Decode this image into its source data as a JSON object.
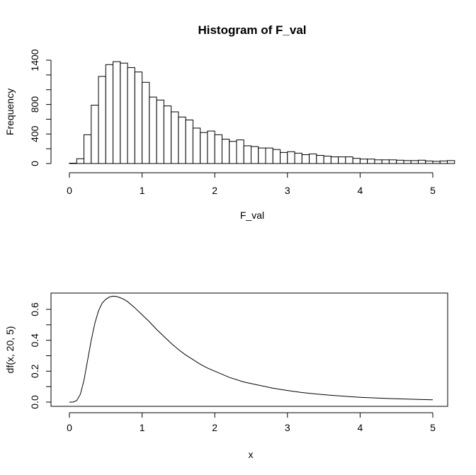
{
  "chart_data": [
    {
      "type": "bar",
      "title": "Histogram of F_val",
      "xlabel": "F_val",
      "ylabel": "Frequency",
      "bin_width": 0.1,
      "bin_start": 0.0,
      "values": [
        5,
        65,
        390,
        790,
        1180,
        1340,
        1380,
        1360,
        1300,
        1240,
        1100,
        900,
        860,
        780,
        700,
        630,
        590,
        480,
        420,
        440,
        390,
        330,
        300,
        320,
        240,
        230,
        210,
        210,
        190,
        150,
        160,
        140,
        120,
        130,
        110,
        100,
        90,
        90,
        90,
        70,
        60,
        60,
        50,
        50,
        50,
        45,
        40,
        40,
        45,
        35,
        30,
        35,
        40
      ],
      "xlim": [
        0,
        5.2
      ],
      "ylim": [
        0,
        1400
      ],
      "x_ticks": [
        "0",
        "1",
        "2",
        "3",
        "4",
        "5"
      ],
      "y_ticks": [
        "0",
        "400",
        "800",
        "1400"
      ]
    },
    {
      "type": "line",
      "title": "",
      "xlabel": "x",
      "ylabel": "df(x, 20, 5)",
      "x": [
        0,
        0.05,
        0.1,
        0.15,
        0.2,
        0.25,
        0.3,
        0.35,
        0.4,
        0.45,
        0.5,
        0.55,
        0.6,
        0.65,
        0.7,
        0.75,
        0.8,
        0.9,
        1.0,
        1.1,
        1.2,
        1.3,
        1.4,
        1.5,
        1.6,
        1.7,
        1.8,
        1.9,
        2.0,
        2.2,
        2.4,
        2.6,
        2.8,
        3.0,
        3.2,
        3.4,
        3.6,
        3.8,
        4.0,
        4.2,
        4.4,
        4.6,
        4.8,
        5.0
      ],
      "y": [
        0,
        0.0,
        0.01,
        0.05,
        0.14,
        0.27,
        0.4,
        0.51,
        0.59,
        0.64,
        0.665,
        0.68,
        0.685,
        0.683,
        0.675,
        0.665,
        0.65,
        0.61,
        0.565,
        0.52,
        0.47,
        0.425,
        0.38,
        0.34,
        0.305,
        0.275,
        0.245,
        0.22,
        0.2,
        0.16,
        0.13,
        0.11,
        0.09,
        0.075,
        0.062,
        0.052,
        0.044,
        0.037,
        0.031,
        0.027,
        0.023,
        0.02,
        0.017,
        0.015
      ],
      "xlim": [
        0,
        5
      ],
      "ylim": [
        0,
        0.6
      ],
      "x_ticks": [
        "0",
        "1",
        "2",
        "3",
        "4",
        "5"
      ],
      "y_ticks": [
        "0.0",
        "0.2",
        "0.4",
        "0.6"
      ]
    }
  ]
}
